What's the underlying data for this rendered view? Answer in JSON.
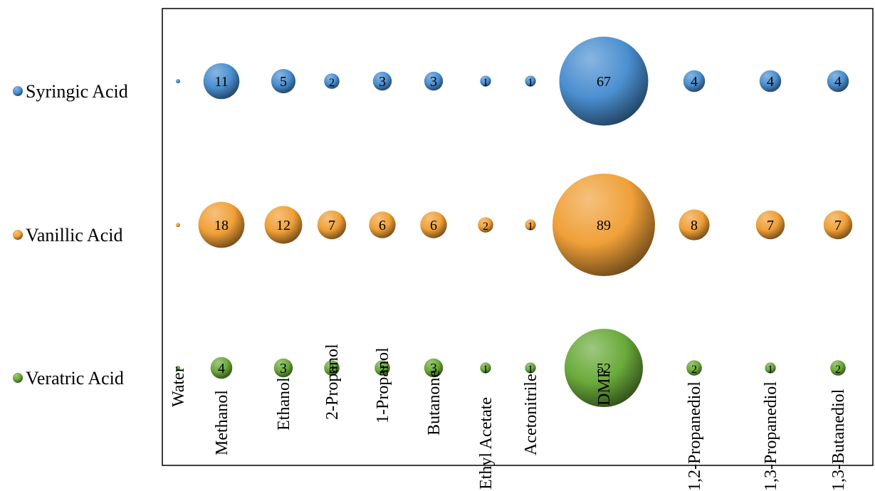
{
  "chart_data": {
    "type": "bubble",
    "categories": [
      "Water",
      "Methanol",
      "Ethanol",
      "2-Propanol",
      "1-Propanol",
      "Butanone",
      "Ethyl Acetate",
      "Acetonitrile",
      "DMF",
      "1,2-Propanediol",
      "1,3-Propanediol",
      "1,3-Butanediol"
    ],
    "series": [
      {
        "name": "Syringic Acid",
        "values": [
          0,
          11,
          5,
          2,
          3,
          3,
          1,
          1,
          67,
          4,
          4,
          4
        ],
        "labels": [
          "",
          "11",
          "5",
          "2",
          "3",
          "3",
          "1",
          "1",
          "67",
          "4",
          "4",
          "4"
        ]
      },
      {
        "name": "Vanillic Acid",
        "values": [
          0,
          18,
          12,
          7,
          6,
          6,
          2,
          1,
          89,
          8,
          7,
          7
        ],
        "labels": [
          "",
          "18",
          "12",
          "7",
          "6",
          "6",
          "2",
          "1",
          "89",
          "8",
          "7",
          "7"
        ]
      },
      {
        "name": "Veratric Acid",
        "values": [
          0,
          4,
          3,
          2,
          2,
          3,
          1,
          1,
          52,
          2,
          1,
          2
        ],
        "labels": [
          "",
          "4",
          "3",
          "2",
          "2",
          "3",
          "1",
          "1",
          "52",
          "2",
          "1",
          "2"
        ]
      }
    ],
    "colors": {
      "Syringic Acid": "#4a8fd0",
      "Vanillic Acid": "#f0a038",
      "Veratric Acid": "#6aaa3a"
    },
    "legend_position": "left",
    "grid": false
  }
}
